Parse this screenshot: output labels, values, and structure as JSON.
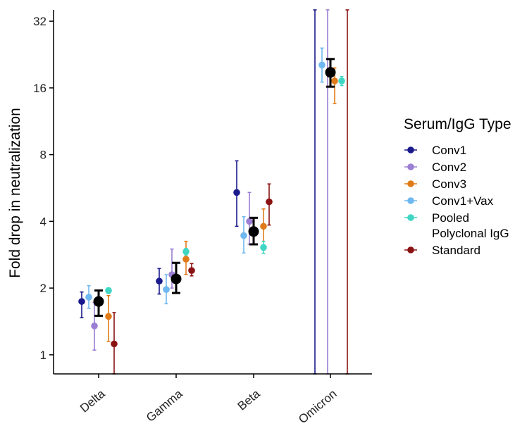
{
  "chart_data": {
    "type": "scatter",
    "ylabel": "Fold drop in neutralization",
    "xlabel": "",
    "y_scale": "log2",
    "ylim": [
      0.82,
      36
    ],
    "y_ticks": [
      1,
      2,
      4,
      8,
      16,
      32
    ],
    "y_tick_labels": [
      "1",
      "2",
      "4",
      "8",
      "16",
      "32"
    ],
    "categories": [
      "Delta",
      "Gamma",
      "Beta",
      "Omicron"
    ],
    "grid": false,
    "legend": {
      "title": "Serum/IgG Type",
      "position": "right"
    },
    "series": [
      {
        "name": "Conv1",
        "color": "#1a1a8c",
        "values": [
          1.74,
          2.15,
          5.4,
          null
        ],
        "lower": [
          1.47,
          1.88,
          3.8,
          0.82
        ],
        "upper": [
          1.92,
          2.45,
          7.5,
          36
        ]
      },
      {
        "name": "Conv2",
        "color": "#9b7fd4",
        "values": [
          1.35,
          2.3,
          4.0,
          null
        ],
        "lower": [
          1.05,
          2.0,
          3.15,
          0.82
        ],
        "upper": [
          1.72,
          3.0,
          5.4,
          36
        ]
      },
      {
        "name": "Conv3",
        "color": "#e07b1a",
        "values": [
          1.49,
          2.7,
          3.8,
          17.2
        ],
        "lower": [
          1.15,
          2.3,
          3.25,
          13.6
        ],
        "upper": [
          1.85,
          3.25,
          4.55,
          19.7
        ]
      },
      {
        "name": "Conv1+Vax",
        "color": "#6fb8f0",
        "values": [
          1.82,
          1.97,
          3.45,
          20.3
        ],
        "lower": [
          1.62,
          1.7,
          2.88,
          17.0
        ],
        "upper": [
          2.05,
          2.3,
          4.2,
          24.2
        ]
      },
      {
        "name": "Pooled\nPolyclonal IgG",
        "color": "#3fd6c4",
        "values": [
          1.95,
          2.92,
          3.05,
          17.2
        ],
        "lower": [
          1.89,
          2.82,
          2.87,
          16.4
        ],
        "upper": [
          2.0,
          3.02,
          3.25,
          18.0
        ]
      },
      {
        "name": "Standard",
        "color": "#8b1212",
        "values": [
          1.12,
          2.4,
          4.9,
          null
        ],
        "lower": [
          0.82,
          2.27,
          3.85,
          0.82
        ],
        "upper": [
          1.55,
          2.58,
          5.9,
          36
        ]
      }
    ],
    "pooled_estimate": {
      "color": "#000000",
      "values": [
        1.74,
        2.2,
        3.6,
        18.8
      ],
      "lower": [
        1.5,
        1.9,
        3.15,
        16.2
      ],
      "upper": [
        1.95,
        2.6,
        4.15,
        21.6
      ]
    }
  }
}
